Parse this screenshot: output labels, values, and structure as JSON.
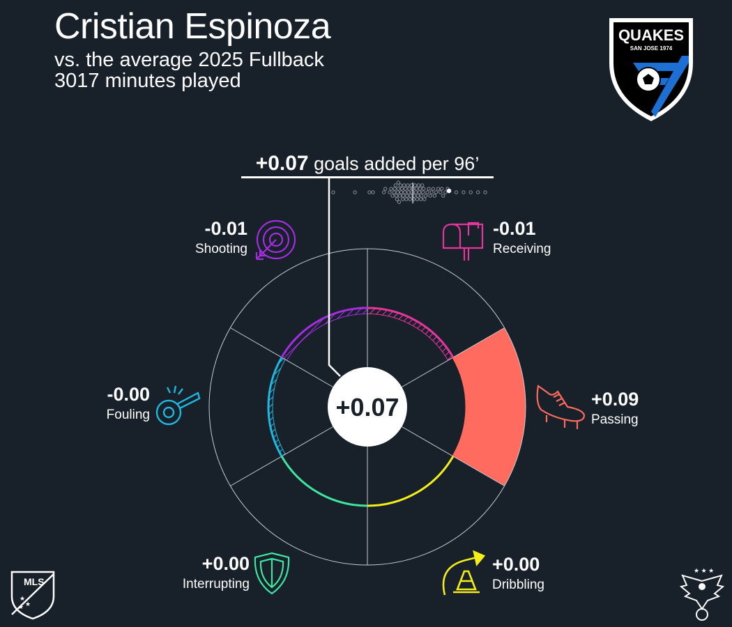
{
  "player": {
    "name": "Cristian Espinoza",
    "subtitle": "vs. the average 2025 Fullback",
    "minutes": "3017 minutes played"
  },
  "team_logo": {
    "text": "QUAKES",
    "subtext": "SAN JOSE 1974"
  },
  "league_logo": {
    "text": "MLS"
  },
  "chart_data": {
    "type": "radial",
    "total": {
      "value_label": "+0.07",
      "label": "goals added per 96’",
      "center_label": "+0.07",
      "value": 0.07
    },
    "categories": [
      {
        "name": "Receiving",
        "value_label": "-0.01",
        "value": -0.01,
        "color": "#e8359e",
        "icon": "mailbox-icon"
      },
      {
        "name": "Passing",
        "value_label": "+0.09",
        "value": 0.09,
        "color": "#ff6b5e",
        "icon": "cleat-icon"
      },
      {
        "name": "Dribbling",
        "value_label": "+0.00",
        "value": 0.0,
        "color": "#f5ef18",
        "icon": "cone-icon"
      },
      {
        "name": "Interrupting",
        "value_label": "+0.00",
        "value": 0.0,
        "color": "#3ee6a0",
        "icon": "shield-icon"
      },
      {
        "name": "Fouling",
        "value_label": "-0.00",
        "value": 0.0,
        "color": "#1fb8e0",
        "icon": "whistle-icon"
      },
      {
        "name": "Shooting",
        "value_label": "-0.01",
        "value": -0.01,
        "color": "#a22ee0",
        "icon": "target-icon"
      }
    ],
    "radial_max": 0.15,
    "distribution": {
      "values": [
        -0.09,
        -0.06,
        -0.04,
        -0.035,
        -0.02,
        -0.018,
        -0.012,
        -0.01,
        -0.008,
        -0.006,
        -0.005,
        -0.004,
        -0.003,
        -0.002,
        -0.001,
        0.0,
        0.0,
        0.001,
        0.002,
        0.003,
        0.004,
        0.005,
        0.006,
        0.007,
        0.008,
        0.009,
        0.01,
        0.011,
        0.012,
        0.013,
        0.014,
        0.015,
        0.016,
        0.017,
        0.018,
        0.019,
        0.02,
        0.021,
        0.022,
        0.023,
        0.024,
        0.025,
        0.026,
        0.027,
        0.028,
        0.029,
        0.03,
        0.031,
        0.032,
        0.033,
        0.034,
        0.035,
        0.036,
        0.038,
        0.04,
        0.042,
        0.044,
        0.046,
        0.048,
        0.05,
        0.052,
        0.055,
        0.058,
        0.06,
        0.062,
        0.065,
        0.068,
        0.08,
        0.09,
        0.1,
        0.11,
        0.12
      ],
      "average": 0.02,
      "player": 0.07
    }
  }
}
